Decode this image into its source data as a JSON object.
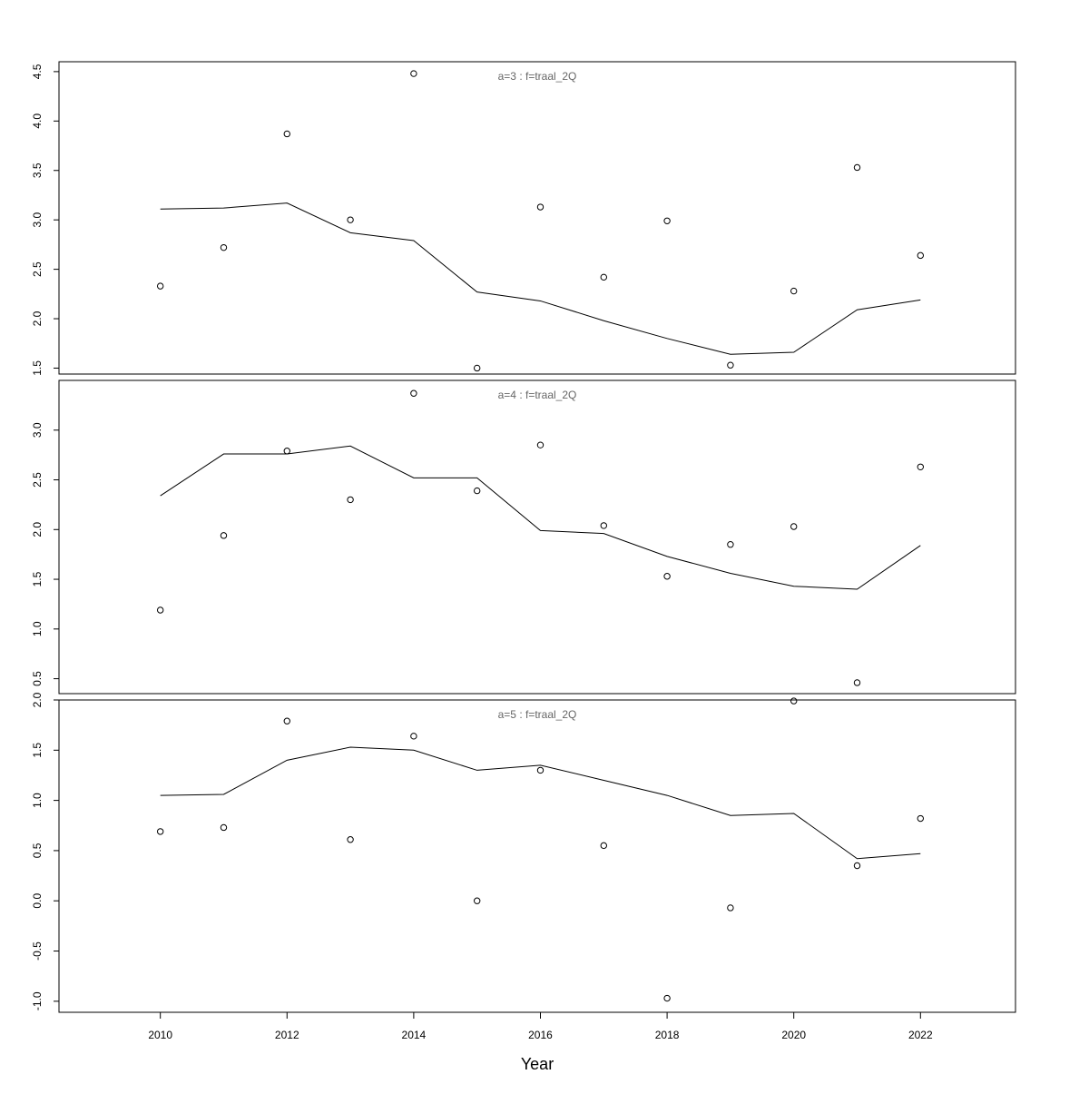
{
  "chart_data": {
    "type": "line",
    "xlabel": "Year",
    "xlim": [
      2008.4,
      2023.5
    ],
    "x_ticks": [
      "2010",
      "2012",
      "2014",
      "2016",
      "2018",
      "2020",
      "2022"
    ],
    "x": [
      2010,
      2011,
      2012,
      2013,
      2014,
      2015,
      2016,
      2017,
      2018,
      2019,
      2020,
      2021,
      2022
    ],
    "panels": [
      {
        "title": "a=3  :  f=traal_2Q",
        "ylim": [
          1.44,
          4.6
        ],
        "y_ticks": [
          "1.5",
          "2.0",
          "2.5",
          "3.0",
          "3.5",
          "4.0",
          "4.5"
        ],
        "series": [
          {
            "values": [
              2.33,
              2.72,
              3.87,
              3.0,
              4.48,
              1.5,
              3.13,
              2.42,
              2.99,
              1.53,
              2.28,
              3.53,
              2.64
            ]
          },
          {
            "values": [
              3.11,
              3.12,
              3.17,
              2.87,
              2.79,
              2.27,
              2.18,
              1.98,
              1.8,
              1.64,
              1.66,
              2.09,
              2.19
            ]
          }
        ]
      },
      {
        "title": "a=4  :  f=traal_2Q",
        "ylim": [
          0.35,
          3.5
        ],
        "y_ticks": [
          "0.5",
          "1.0",
          "1.5",
          "2.0",
          "2.5",
          "3.0"
        ],
        "series": [
          {
            "values": [
              1.19,
              1.94,
              2.79,
              2.3,
              3.37,
              2.39,
              2.85,
              2.04,
              1.53,
              1.85,
              2.03,
              0.46,
              2.63
            ]
          },
          {
            "values": [
              2.34,
              2.76,
              2.76,
              2.84,
              2.52,
              2.52,
              1.99,
              1.96,
              1.73,
              1.56,
              1.43,
              1.4,
              1.84
            ]
          }
        ]
      },
      {
        "title": "a=5  :  f=traal_2Q",
        "ylim": [
          -1.11,
          2.0
        ],
        "y_ticks": [
          "-1.0",
          "-0.5",
          "0.0",
          "0.5",
          "1.0",
          "1.5",
          "2.0"
        ],
        "series": [
          {
            "values": [
              0.69,
              0.73,
              1.79,
              0.61,
              1.64,
              0.0,
              1.3,
              0.55,
              -0.97,
              -0.07,
              1.99,
              0.35,
              0.82
            ]
          },
          {
            "values": [
              1.05,
              1.06,
              1.4,
              1.53,
              1.5,
              1.3,
              1.35,
              1.2,
              1.05,
              0.85,
              0.87,
              0.42,
              0.47
            ]
          }
        ]
      }
    ]
  }
}
